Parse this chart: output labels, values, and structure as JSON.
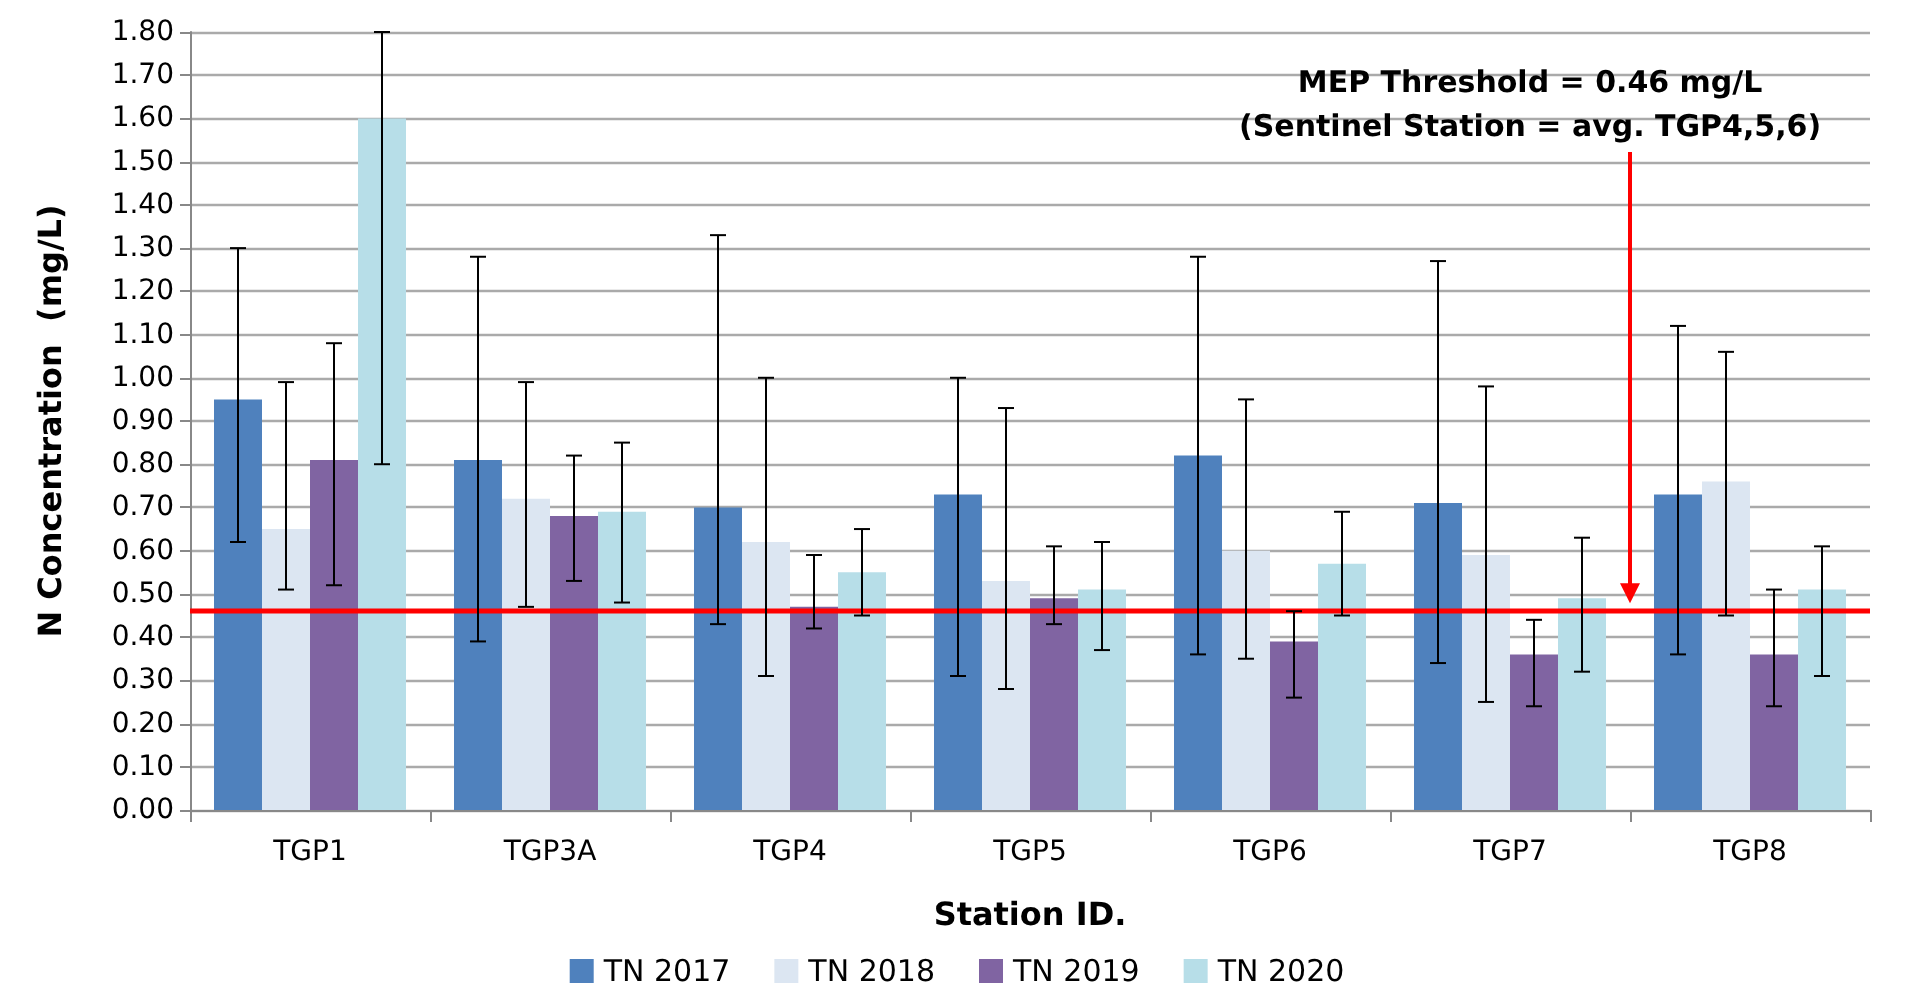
{
  "chart_data": {
    "type": "bar",
    "xlabel": "Station ID.",
    "ylabel": "N Concentration  (mg/L)",
    "categories": [
      "TGP1",
      "TGP3A",
      "TGP4",
      "TGP5",
      "TGP6",
      "TGP7",
      "TGP8"
    ],
    "series": [
      {
        "name": "TN 2017",
        "color": "#4f81bd",
        "values": [
          0.95,
          0.81,
          0.7,
          0.73,
          0.82,
          0.71,
          0.73
        ],
        "errors": [
          [
            0.62,
            1.3
          ],
          [
            0.39,
            1.28
          ],
          [
            0.43,
            1.33
          ],
          [
            0.31,
            1.0
          ],
          [
            0.36,
            1.28
          ],
          [
            0.34,
            1.27
          ],
          [
            0.36,
            1.12
          ]
        ]
      },
      {
        "name": "TN 2018",
        "color": "#dce6f2",
        "values": [
          0.65,
          0.72,
          0.62,
          0.53,
          0.6,
          0.59,
          0.76
        ],
        "errors": [
          [
            0.51,
            0.99
          ],
          [
            0.47,
            0.99
          ],
          [
            0.31,
            1.0
          ],
          [
            0.28,
            0.93
          ],
          [
            0.35,
            0.95
          ],
          [
            0.25,
            0.98
          ],
          [
            0.45,
            1.06
          ]
        ]
      },
      {
        "name": "TN 2019",
        "color": "#8064a2",
        "values": [
          0.81,
          0.68,
          0.47,
          0.49,
          0.39,
          0.36,
          0.36
        ],
        "errors": [
          [
            0.52,
            1.08
          ],
          [
            0.53,
            0.82
          ],
          [
            0.42,
            0.59
          ],
          [
            0.43,
            0.61
          ],
          [
            0.26,
            0.46
          ],
          [
            0.24,
            0.44
          ],
          [
            0.24,
            0.51
          ]
        ]
      },
      {
        "name": "TN 2020",
        "color": "#b7dee8",
        "values": [
          1.6,
          0.69,
          0.55,
          0.51,
          0.57,
          0.49,
          0.51
        ],
        "errors": [
          [
            0.8,
            1.8
          ],
          [
            0.48,
            0.85
          ],
          [
            0.45,
            0.65
          ],
          [
            0.37,
            0.62
          ],
          [
            0.45,
            0.69
          ],
          [
            0.32,
            0.63
          ],
          [
            0.31,
            0.61
          ]
        ]
      }
    ],
    "ylim": [
      0,
      1.8
    ],
    "yticks": [
      {
        "value": 0,
        "label": "0.00"
      },
      {
        "value": 0.1,
        "label": "0.10"
      },
      {
        "value": 0.2,
        "label": "0.20"
      },
      {
        "value": 0.3,
        "label": "0.30"
      },
      {
        "value": 0.4,
        "label": "0.40"
      },
      {
        "value": 0.5,
        "label": "0.50"
      },
      {
        "value": 0.6,
        "label": "0.60"
      },
      {
        "value": 0.7,
        "label": "0.70"
      },
      {
        "value": 0.8,
        "label": "0.80"
      },
      {
        "value": 0.9,
        "label": "0.90"
      },
      {
        "value": 1.0,
        "label": "1.00"
      },
      {
        "value": 1.1,
        "label": "1.10"
      },
      {
        "value": 1.2,
        "label": "1.20"
      },
      {
        "value": 1.3,
        "label": "1.30"
      },
      {
        "value": 1.4,
        "label": "1.40"
      },
      {
        "value": 1.5,
        "label": "1.50"
      },
      {
        "value": 1.6,
        "label": "1.60"
      },
      {
        "value": 1.7,
        "label": "1.70"
      },
      {
        "value": 1.8,
        "label": "1.80"
      }
    ],
    "ref_lines": [
      {
        "axis": "y",
        "value": 0.46,
        "color": "#ff0000"
      }
    ],
    "annotations": [
      "MEP Threshold = 0.46 mg/L\n(Sentinel Station = avg. TGP4,5,6)"
    ],
    "grid": "y",
    "legend": "bottom"
  }
}
